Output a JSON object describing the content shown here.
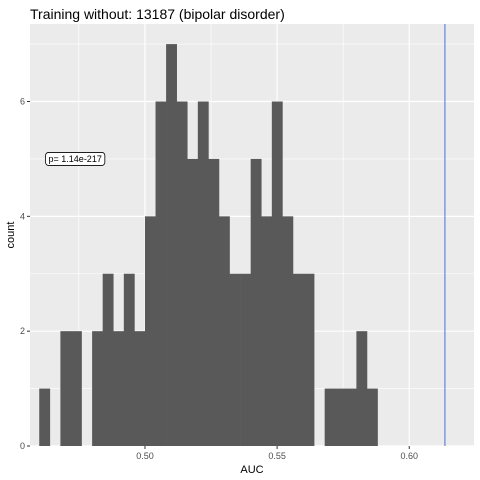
{
  "chart_data": {
    "type": "bar",
    "title": "Training without: 13187 (bipolar disorder)",
    "xlabel": "AUC",
    "ylabel": "count",
    "xlim": [
      0.4565,
      0.6245
    ],
    "ylim": [
      0,
      7.35
    ],
    "x_ticks": [
      0.5,
      0.55,
      0.6
    ],
    "x_tick_labels": [
      "0.50",
      "0.55",
      "0.60"
    ],
    "y_ticks": [
      0,
      2,
      4,
      6
    ],
    "y_tick_labels": [
      "0",
      "2",
      "4",
      "6"
    ],
    "grid": true,
    "bin_width": 0.004,
    "bins": [
      {
        "x0": 0.46,
        "count": 1
      },
      {
        "x0": 0.464,
        "count": 0
      },
      {
        "x0": 0.468,
        "count": 2
      },
      {
        "x0": 0.472,
        "count": 2
      },
      {
        "x0": 0.476,
        "count": 0
      },
      {
        "x0": 0.48,
        "count": 2
      },
      {
        "x0": 0.484,
        "count": 3
      },
      {
        "x0": 0.488,
        "count": 2
      },
      {
        "x0": 0.492,
        "count": 3
      },
      {
        "x0": 0.496,
        "count": 2
      },
      {
        "x0": 0.5,
        "count": 4
      },
      {
        "x0": 0.504,
        "count": 6
      },
      {
        "x0": 0.508,
        "count": 7
      },
      {
        "x0": 0.512,
        "count": 6
      },
      {
        "x0": 0.516,
        "count": 5
      },
      {
        "x0": 0.52,
        "count": 6
      },
      {
        "x0": 0.524,
        "count": 5
      },
      {
        "x0": 0.528,
        "count": 4
      },
      {
        "x0": 0.532,
        "count": 3
      },
      {
        "x0": 0.536,
        "count": 3
      },
      {
        "x0": 0.54,
        "count": 5
      },
      {
        "x0": 0.544,
        "count": 4
      },
      {
        "x0": 0.548,
        "count": 6
      },
      {
        "x0": 0.552,
        "count": 4
      },
      {
        "x0": 0.556,
        "count": 3
      },
      {
        "x0": 0.56,
        "count": 3
      },
      {
        "x0": 0.564,
        "count": 0
      },
      {
        "x0": 0.568,
        "count": 1
      },
      {
        "x0": 0.572,
        "count": 1
      },
      {
        "x0": 0.576,
        "count": 1
      },
      {
        "x0": 0.58,
        "count": 2
      },
      {
        "x0": 0.584,
        "count": 1
      }
    ],
    "vline": {
      "x": 0.6135,
      "color": "#4b6fd6"
    },
    "annotation": {
      "text": "p= 1.14e-217",
      "x": 0.4736,
      "y": 5
    },
    "colors": {
      "panel_bg": "#ebebeb",
      "grid": "#ffffff",
      "bar": "#595959"
    }
  }
}
